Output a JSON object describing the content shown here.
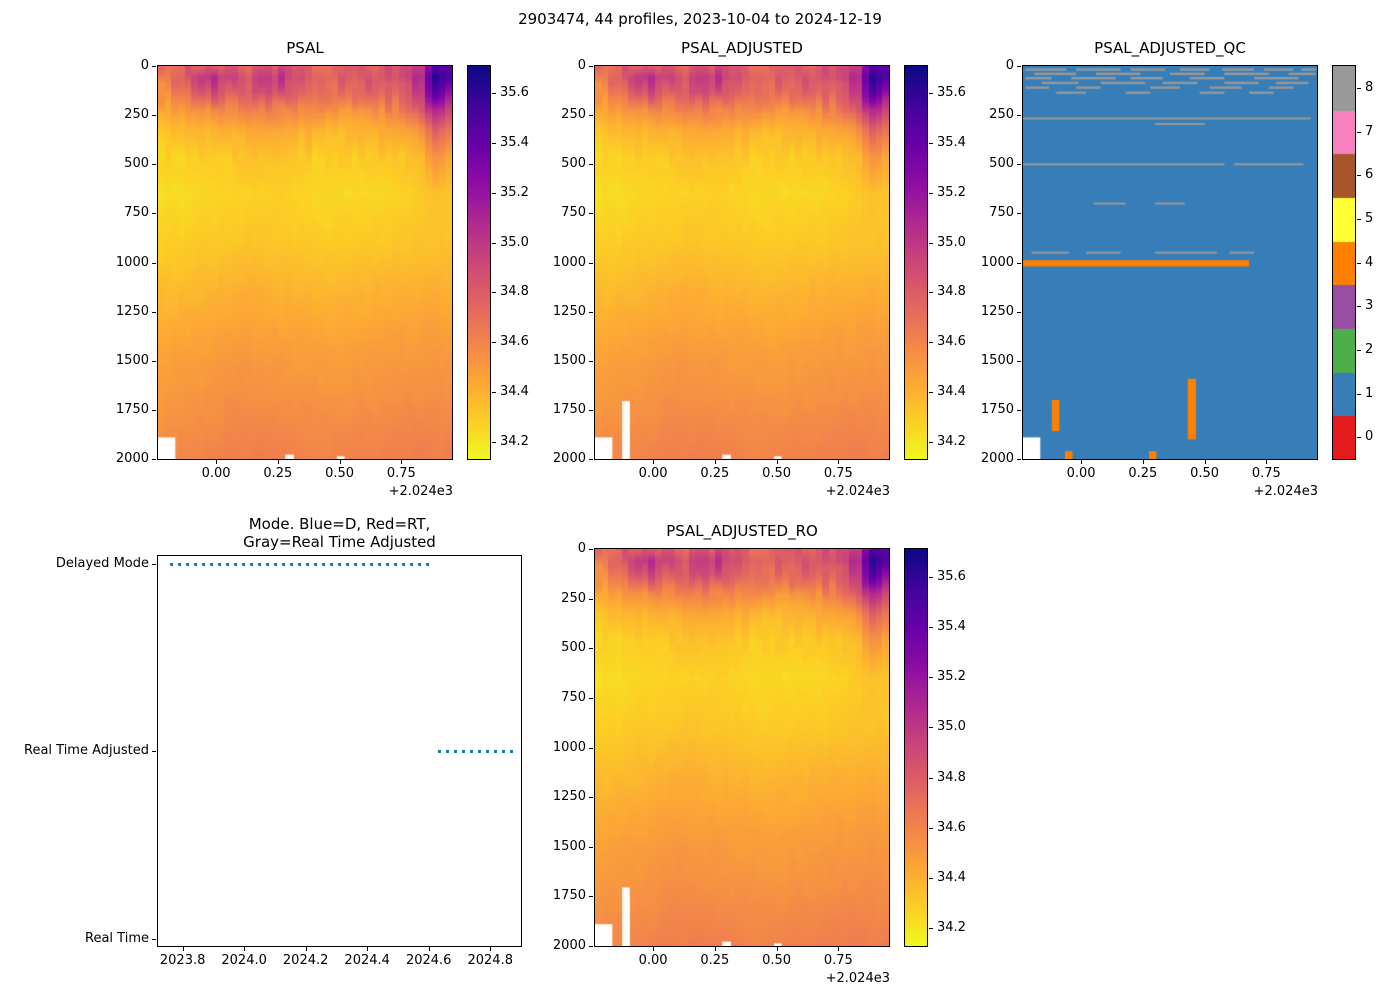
{
  "figure": {
    "title": "2903474, 44 profiles, 2023-10-04 to 2024-12-19"
  },
  "palette": {
    "plasma_r": [
      "#f0f921",
      "#fcce25",
      "#fca636",
      "#f2844b",
      "#e16462",
      "#cc4778",
      "#b12a90",
      "#8f0da4",
      "#6a00a8",
      "#41049d",
      "#0d0887"
    ],
    "qc_colors": [
      "#e41a1c",
      "#377eb8",
      "#4daf4a",
      "#984ea3",
      "#ff7f00",
      "#ffff33",
      "#a65628",
      "#f781bf",
      "#999999"
    ],
    "mode_line": "#1f77b4",
    "missing_color": "#ffffff"
  },
  "colorbars": {
    "salinity": {
      "vmin": 34.13,
      "vmax": 35.71,
      "tick_values": [
        35.6,
        35.4,
        35.2,
        35.0,
        34.8,
        34.6,
        34.4,
        34.2
      ],
      "tick_labels": [
        "35.6",
        "35.4",
        "35.2",
        "35.0",
        "34.8",
        "34.6",
        "34.4",
        "34.2"
      ]
    },
    "qc": {
      "labels": [
        "0",
        "1",
        "2",
        "3",
        "4",
        "5",
        "6",
        "7",
        "8"
      ]
    }
  },
  "salinity_grid": {
    "x": [
      -0.235,
      -0.16,
      -0.08,
      0.0,
      0.08,
      0.16,
      0.26,
      0.36,
      0.46,
      0.56,
      0.66,
      0.76,
      0.83,
      0.89,
      0.955
    ],
    "depths": [
      0,
      60,
      130,
      220,
      320,
      460,
      650,
      900,
      1150,
      1450,
      1750,
      2000
    ],
    "values": [
      [
        34.7,
        34.78,
        34.85,
        34.82,
        34.75,
        34.8,
        34.85,
        34.78,
        34.75,
        34.8,
        34.82,
        34.85,
        35.0,
        35.55,
        35.35
      ],
      [
        34.65,
        34.72,
        34.95,
        35.05,
        34.85,
        34.9,
        35.0,
        34.85,
        34.78,
        34.8,
        34.85,
        34.95,
        35.1,
        35.7,
        35.45
      ],
      [
        34.55,
        34.62,
        34.8,
        34.9,
        34.75,
        34.85,
        34.92,
        34.78,
        34.7,
        34.72,
        34.78,
        34.85,
        35.0,
        35.55,
        35.2
      ],
      [
        34.42,
        34.48,
        34.55,
        34.6,
        34.58,
        34.62,
        34.65,
        34.58,
        34.52,
        34.55,
        34.58,
        34.65,
        34.8,
        35.15,
        34.9
      ],
      [
        34.33,
        34.36,
        34.4,
        34.42,
        34.42,
        34.46,
        34.48,
        34.42,
        34.38,
        34.4,
        34.42,
        34.46,
        34.55,
        34.85,
        34.62
      ],
      [
        34.27,
        34.28,
        34.3,
        34.31,
        34.32,
        34.34,
        34.34,
        34.31,
        34.29,
        34.3,
        34.31,
        34.33,
        34.38,
        34.55,
        34.42
      ],
      [
        34.23,
        34.24,
        34.25,
        34.26,
        34.27,
        34.28,
        34.28,
        34.26,
        34.25,
        34.25,
        34.26,
        34.27,
        34.3,
        34.34,
        34.31
      ],
      [
        34.28,
        34.29,
        34.3,
        34.31,
        34.32,
        34.33,
        34.32,
        34.31,
        34.3,
        34.31,
        34.31,
        34.32,
        34.33,
        34.34,
        34.33
      ],
      [
        34.36,
        34.37,
        34.38,
        34.39,
        34.41,
        34.41,
        34.4,
        34.39,
        34.38,
        34.39,
        34.4,
        34.41,
        34.41,
        34.42,
        34.41
      ],
      [
        34.45,
        34.46,
        34.47,
        34.48,
        34.5,
        34.5,
        34.49,
        34.48,
        34.47,
        34.48,
        34.49,
        34.5,
        34.5,
        34.51,
        34.5
      ],
      [
        34.52,
        34.53,
        34.54,
        34.55,
        34.57,
        34.57,
        34.56,
        34.55,
        34.54,
        34.55,
        34.56,
        34.57,
        34.57,
        34.57,
        34.57
      ],
      [
        34.58,
        34.59,
        34.6,
        34.61,
        34.63,
        34.63,
        34.62,
        34.61,
        34.6,
        34.61,
        34.62,
        34.63,
        34.63,
        34.63,
        34.63
      ]
    ]
  },
  "chart_data": [
    {
      "id": "psal",
      "type": "heatmap",
      "title": "PSAL",
      "n_profiles": 44,
      "noise_seed": 7,
      "xlim": [
        -0.235,
        0.955
      ],
      "x_ticks": [
        0.0,
        0.25,
        0.5,
        0.75
      ],
      "x_tick_labels": [
        "0.00",
        "0.25",
        "0.50",
        "0.75"
      ],
      "xlabel_offset": "+2.024e3",
      "ylim": [
        0,
        2000
      ],
      "y_ticks": [
        0,
        250,
        500,
        750,
        1000,
        1250,
        1500,
        1750,
        2000
      ],
      "colorbar": "salinity",
      "grid": "salinity_grid",
      "missing": [
        {
          "x0": -0.235,
          "x1": -0.165,
          "d0": 1890,
          "d1": 2000
        },
        {
          "x0": 0.28,
          "x1": 0.315,
          "d0": 1978,
          "d1": 2000
        },
        {
          "x0": 0.49,
          "x1": 0.52,
          "d0": 1986,
          "d1": 2000
        }
      ]
    },
    {
      "id": "psal_adjusted",
      "type": "heatmap",
      "title": "PSAL_ADJUSTED",
      "n_profiles": 44,
      "noise_seed": 7,
      "xlim": [
        -0.235,
        0.955
      ],
      "x_ticks": [
        0.0,
        0.25,
        0.5,
        0.75
      ],
      "x_tick_labels": [
        "0.00",
        "0.25",
        "0.50",
        "0.75"
      ],
      "xlabel_offset": "+2.024e3",
      "ylim": [
        0,
        2000
      ],
      "y_ticks": [
        0,
        250,
        500,
        750,
        1000,
        1250,
        1500,
        1750,
        2000
      ],
      "colorbar": "salinity",
      "grid": "salinity_grid",
      "missing": [
        {
          "x0": -0.235,
          "x1": -0.165,
          "d0": 1890,
          "d1": 2000
        },
        {
          "x0": -0.125,
          "x1": -0.094,
          "d0": 1705,
          "d1": 2000
        },
        {
          "x0": 0.28,
          "x1": 0.315,
          "d0": 1978,
          "d1": 2000
        },
        {
          "x0": 0.49,
          "x1": 0.52,
          "d0": 1986,
          "d1": 2000
        }
      ]
    },
    {
      "id": "psal_adjusted_qc",
      "type": "qc_heatmap",
      "title": "PSAL_ADJUSTED_QC",
      "xlim": [
        -0.235,
        0.955
      ],
      "x_ticks": [
        0.0,
        0.25,
        0.5,
        0.75
      ],
      "x_tick_labels": [
        "0.00",
        "0.25",
        "0.50",
        "0.75"
      ],
      "xlabel_offset": "+2.024e3",
      "ylim": [
        0,
        2000
      ],
      "y_ticks": [
        0,
        250,
        500,
        750,
        1000,
        1250,
        1500,
        1750,
        2000
      ],
      "colorbar": "qc",
      "background_qc": 1,
      "segments": [
        {
          "qc": 8,
          "x0": -0.225,
          "x1": -0.06,
          "d0": 12,
          "d1": 24
        },
        {
          "qc": 8,
          "x0": -0.02,
          "x1": 0.16,
          "d0": 12,
          "d1": 24
        },
        {
          "qc": 8,
          "x0": 0.2,
          "x1": 0.34,
          "d0": 12,
          "d1": 24
        },
        {
          "qc": 8,
          "x0": 0.4,
          "x1": 0.52,
          "d0": 12,
          "d1": 24
        },
        {
          "qc": 8,
          "x0": 0.57,
          "x1": 0.7,
          "d0": 12,
          "d1": 24
        },
        {
          "qc": 8,
          "x0": 0.74,
          "x1": 0.86,
          "d0": 12,
          "d1": 24
        },
        {
          "qc": 8,
          "x0": 0.89,
          "x1": 0.95,
          "d0": 12,
          "d1": 24
        },
        {
          "qc": 8,
          "x0": -0.19,
          "x1": -0.02,
          "d0": 34,
          "d1": 46
        },
        {
          "qc": 8,
          "x0": 0.06,
          "x1": 0.24,
          "d0": 34,
          "d1": 46
        },
        {
          "qc": 8,
          "x0": 0.36,
          "x1": 0.5,
          "d0": 34,
          "d1": 46
        },
        {
          "qc": 8,
          "x0": 0.58,
          "x1": 0.76,
          "d0": 34,
          "d1": 46
        },
        {
          "qc": 8,
          "x0": 0.84,
          "x1": 0.95,
          "d0": 34,
          "d1": 46
        },
        {
          "qc": 8,
          "x0": -0.225,
          "x1": -0.12,
          "d0": 56,
          "d1": 68
        },
        {
          "qc": 8,
          "x0": -0.04,
          "x1": 0.14,
          "d0": 56,
          "d1": 68
        },
        {
          "qc": 8,
          "x0": 0.2,
          "x1": 0.33,
          "d0": 56,
          "d1": 68
        },
        {
          "qc": 8,
          "x0": 0.44,
          "x1": 0.58,
          "d0": 56,
          "d1": 68
        },
        {
          "qc": 8,
          "x0": 0.7,
          "x1": 0.88,
          "d0": 56,
          "d1": 68
        },
        {
          "qc": 8,
          "x0": -0.16,
          "x1": -0.01,
          "d0": 80,
          "d1": 92
        },
        {
          "qc": 8,
          "x0": 0.08,
          "x1": 0.26,
          "d0": 80,
          "d1": 92
        },
        {
          "qc": 8,
          "x0": 0.33,
          "x1": 0.47,
          "d0": 80,
          "d1": 92
        },
        {
          "qc": 8,
          "x0": 0.58,
          "x1": 0.72,
          "d0": 80,
          "d1": 92
        },
        {
          "qc": 8,
          "x0": 0.79,
          "x1": 0.92,
          "d0": 80,
          "d1": 92
        },
        {
          "qc": 8,
          "x0": -0.225,
          "x1": -0.13,
          "d0": 104,
          "d1": 116
        },
        {
          "qc": 8,
          "x0": -0.02,
          "x1": 0.08,
          "d0": 104,
          "d1": 116
        },
        {
          "qc": 8,
          "x0": 0.28,
          "x1": 0.4,
          "d0": 104,
          "d1": 116
        },
        {
          "qc": 8,
          "x0": 0.52,
          "x1": 0.65,
          "d0": 104,
          "d1": 116
        },
        {
          "qc": 8,
          "x0": 0.76,
          "x1": 0.86,
          "d0": 104,
          "d1": 116
        },
        {
          "qc": 8,
          "x0": -0.1,
          "x1": 0.02,
          "d0": 130,
          "d1": 142
        },
        {
          "qc": 8,
          "x0": 0.18,
          "x1": 0.28,
          "d0": 130,
          "d1": 142
        },
        {
          "qc": 8,
          "x0": 0.48,
          "x1": 0.58,
          "d0": 130,
          "d1": 142
        },
        {
          "qc": 8,
          "x0": 0.68,
          "x1": 0.78,
          "d0": 130,
          "d1": 142
        },
        {
          "qc": 8,
          "x0": -0.235,
          "x1": 0.93,
          "d0": 262,
          "d1": 272
        },
        {
          "qc": 8,
          "x0": 0.3,
          "x1": 0.5,
          "d0": 290,
          "d1": 300
        },
        {
          "qc": 8,
          "x0": -0.235,
          "x1": 0.58,
          "d0": 495,
          "d1": 505
        },
        {
          "qc": 8,
          "x0": 0.62,
          "x1": 0.9,
          "d0": 495,
          "d1": 505
        },
        {
          "qc": 8,
          "x0": 0.05,
          "x1": 0.18,
          "d0": 695,
          "d1": 705
        },
        {
          "qc": 8,
          "x0": 0.3,
          "x1": 0.42,
          "d0": 695,
          "d1": 705
        },
        {
          "qc": 8,
          "x0": -0.2,
          "x1": -0.05,
          "d0": 945,
          "d1": 955
        },
        {
          "qc": 8,
          "x0": 0.02,
          "x1": 0.16,
          "d0": 945,
          "d1": 955
        },
        {
          "qc": 8,
          "x0": 0.3,
          "x1": 0.55,
          "d0": 945,
          "d1": 955
        },
        {
          "qc": 8,
          "x0": 0.6,
          "x1": 0.7,
          "d0": 945,
          "d1": 955
        },
        {
          "qc": 4,
          "x0": -0.235,
          "x1": 0.68,
          "d0": 988,
          "d1": 1020
        },
        {
          "qc": 4,
          "x0": -0.118,
          "x1": -0.088,
          "d0": 1700,
          "d1": 1858
        },
        {
          "qc": 4,
          "x0": 0.432,
          "x1": 0.465,
          "d0": 1592,
          "d1": 1900
        },
        {
          "qc": 4,
          "x0": -0.065,
          "x1": -0.035,
          "d0": 1960,
          "d1": 2000
        },
        {
          "qc": 4,
          "x0": 0.275,
          "x1": 0.305,
          "d0": 1960,
          "d1": 2000
        }
      ],
      "missing": [
        {
          "x0": -0.235,
          "x1": -0.165,
          "d0": 1890,
          "d1": 2000
        }
      ]
    },
    {
      "id": "mode",
      "type": "line",
      "title": "Mode. Blue=D, Red=RT,\nGray=Real Time Adjusted",
      "xlim": [
        2023.72,
        2024.9
      ],
      "x_ticks": [
        2023.8,
        2024.0,
        2024.2,
        2024.4,
        2024.6,
        2024.8
      ],
      "x_tick_labels": [
        "2023.8",
        "2024.0",
        "2024.2",
        "2024.4",
        "2024.6",
        "2024.8"
      ],
      "ylim": [
        -0.04,
        2.04
      ],
      "y_categories": [
        {
          "label": "Real Time",
          "value": 0
        },
        {
          "label": "Real Time Adjusted",
          "value": 1
        },
        {
          "label": "Delayed Mode",
          "value": 2
        }
      ],
      "series": [
        {
          "name": "Delayed Mode",
          "level": 2,
          "x0": 2023.76,
          "x1": 2024.61,
          "style": "dotted",
          "color": "#1f77b4"
        },
        {
          "name": "Real Time Adjusted",
          "level": 1,
          "x0": 2024.63,
          "x1": 2024.89,
          "style": "dotted",
          "color": "#1f77b4"
        }
      ]
    },
    {
      "id": "psal_adjusted_ro",
      "type": "heatmap",
      "title": "PSAL_ADJUSTED_RO",
      "n_profiles": 44,
      "noise_seed": 7,
      "xlim": [
        -0.235,
        0.955
      ],
      "x_ticks": [
        0.0,
        0.25,
        0.5,
        0.75
      ],
      "x_tick_labels": [
        "0.00",
        "0.25",
        "0.50",
        "0.75"
      ],
      "xlabel_offset": "+2.024e3",
      "ylim": [
        0,
        2000
      ],
      "y_ticks": [
        0,
        250,
        500,
        750,
        1000,
        1250,
        1500,
        1750,
        2000
      ],
      "colorbar": "salinity",
      "grid": "salinity_grid",
      "missing": [
        {
          "x0": -0.235,
          "x1": -0.165,
          "d0": 1890,
          "d1": 2000
        },
        {
          "x0": -0.125,
          "x1": -0.094,
          "d0": 1705,
          "d1": 2000
        },
        {
          "x0": 0.28,
          "x1": 0.315,
          "d0": 1978,
          "d1": 2000
        },
        {
          "x0": 0.49,
          "x1": 0.52,
          "d0": 1986,
          "d1": 2000
        }
      ]
    }
  ]
}
